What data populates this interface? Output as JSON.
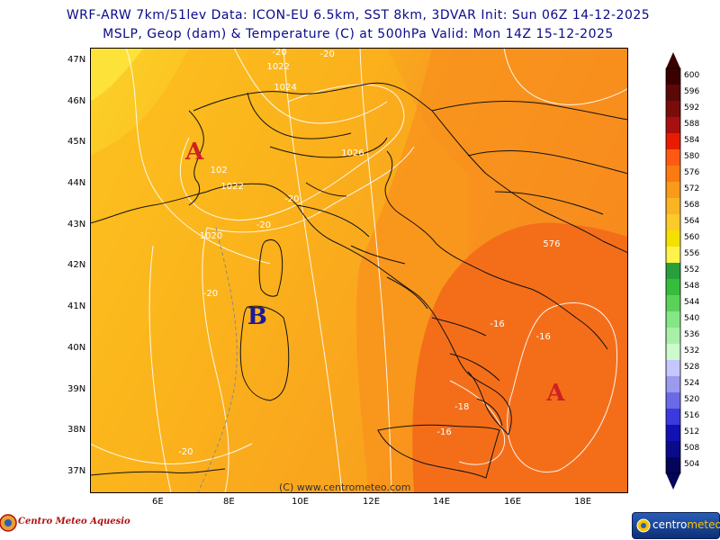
{
  "header": {
    "line1": "WRF-ARW 7km/51lev  Data: ICON-EU 6.5km, SST 8km, 3DVAR  Init: Sun 06Z 14-12-2025",
    "line2": "MSLP, Geop (dam) & Temperature (C) at 500hPa  Valid: Mon 14Z 15-12-2025"
  },
  "map": {
    "lat_labels": [
      "47N",
      "46N",
      "45N",
      "44N",
      "43N",
      "42N",
      "41N",
      "40N",
      "39N",
      "38N",
      "37N"
    ],
    "lon_labels": [
      "6E",
      "8E",
      "10E",
      "12E",
      "14E",
      "16E",
      "18E"
    ],
    "copyright": "(C) www.centrometeo.com",
    "pressure_centers": [
      {
        "label": "A",
        "lon": 7.2,
        "lat": 44.75,
        "color": "#cc2222"
      },
      {
        "label": "B",
        "lon": 8.95,
        "lat": 40.75,
        "color": "#1a1a9a"
      },
      {
        "label": "A",
        "lon": 17.4,
        "lat": 38.9,
        "color": "#cc2222"
      }
    ],
    "contour_labels": [
      {
        "text": "-20",
        "lon": 9.65,
        "lat": 47.15
      },
      {
        "text": "-20",
        "lon": 11.0,
        "lat": 47.1
      },
      {
        "text": "1022",
        "lon": 9.5,
        "lat": 46.8
      },
      {
        "text": "1024",
        "lon": 9.7,
        "lat": 46.3
      },
      {
        "text": "1026",
        "lon": 11.6,
        "lat": 44.7
      },
      {
        "text": "1022",
        "lon": 8.2,
        "lat": 43.9
      },
      {
        "text": "102",
        "lon": 7.9,
        "lat": 44.3
      },
      {
        "text": "-20",
        "lon": 10.0,
        "lat": 43.6
      },
      {
        "text": "-20",
        "lon": 9.2,
        "lat": 42.95
      },
      {
        "text": "1020",
        "lon": 7.6,
        "lat": 42.7
      },
      {
        "text": "-20",
        "lon": 7.7,
        "lat": 41.3
      },
      {
        "text": "-16",
        "lon": 15.8,
        "lat": 40.55
      },
      {
        "text": "-16",
        "lon": 17.1,
        "lat": 40.25
      },
      {
        "text": "-18",
        "lon": 14.8,
        "lat": 38.55
      },
      {
        "text": "-16",
        "lon": 14.3,
        "lat": 37.95
      },
      {
        "text": "576",
        "lon": 17.3,
        "lat": 42.5
      },
      {
        "text": "-20",
        "lon": 7.0,
        "lat": 37.45
      }
    ]
  },
  "colorbar": {
    "labels": [
      "600",
      "596",
      "592",
      "588",
      "584",
      "580",
      "576",
      "572",
      "568",
      "564",
      "560",
      "556",
      "552",
      "548",
      "544",
      "540",
      "536",
      "532",
      "528",
      "524",
      "520",
      "516",
      "512",
      "508",
      "504"
    ],
    "colors": [
      "#3a0000",
      "#5a0808",
      "#7a0c0c",
      "#a80f0f",
      "#e81c00",
      "#ff5a14",
      "#fb7a12",
      "#fa9a1a",
      "#fab424",
      "#fcca2a",
      "#f4e000",
      "#fff24a",
      "#27a03c",
      "#37bc3c",
      "#5ad25a",
      "#84e684",
      "#a8f0a8",
      "#ccfacc",
      "#c6c6ff",
      "#9a9aee",
      "#6a6ae8",
      "#3a3ade",
      "#1212b4",
      "#0a0a8a",
      "#04045a"
    ]
  },
  "logos": {
    "left": "Centro Meteo Aquesio",
    "right_a": "centro",
    "right_b": "meteo"
  }
}
